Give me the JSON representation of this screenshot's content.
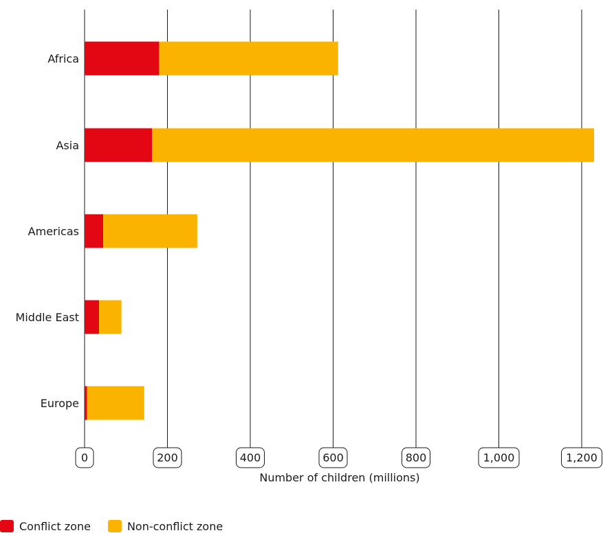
{
  "chart_data": {
    "type": "bar",
    "orientation": "horizontal",
    "stacked": true,
    "categories": [
      "Africa",
      "Asia",
      "Americas",
      "Middle East",
      "Europe"
    ],
    "series": [
      {
        "name": "Conflict zone",
        "color": "#e30613",
        "values": [
          180,
          163,
          45,
          35,
          6
        ]
      },
      {
        "name": "Non-conflict zone",
        "color": "#fab400",
        "values": [
          432,
          1067,
          227,
          54,
          138
        ]
      }
    ],
    "xlabel": "Number of children (millions)",
    "ylabel": "",
    "xlim": [
      0,
      1230
    ],
    "xticks": [
      0,
      200,
      400,
      600,
      800,
      1000,
      1200
    ],
    "xtick_labels": [
      "0",
      "200",
      "400",
      "600",
      "800",
      "1,000",
      "1,200"
    ],
    "grid": "vertical",
    "legend_position": "bottom-left"
  }
}
